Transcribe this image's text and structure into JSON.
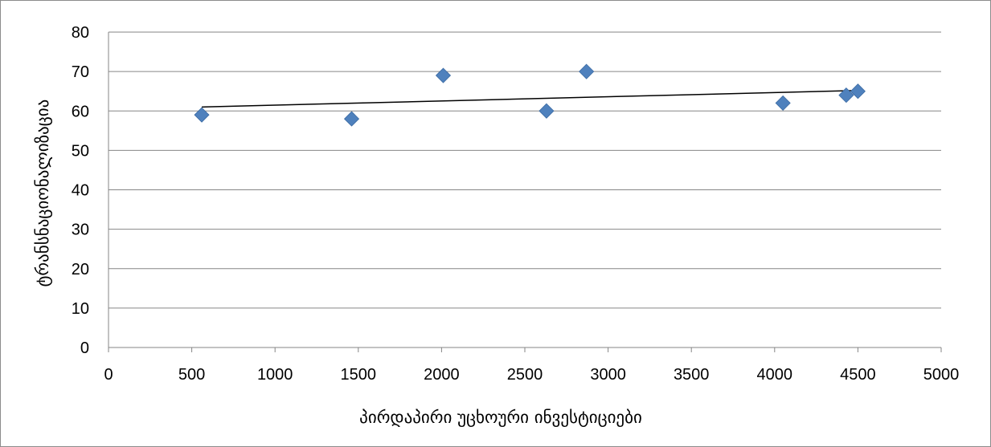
{
  "chart_data": {
    "type": "scatter",
    "xlabel": "პირდაპირი უცხოური ინვესტიციები",
    "ylabel": "ტრანსნაციონალიზაცია",
    "xlim": [
      0,
      5000
    ],
    "ylim": [
      0,
      80
    ],
    "x_ticks": [
      "0",
      "500",
      "1000",
      "1500",
      "2000",
      "2500",
      "3000",
      "3500",
      "4000",
      "4500",
      "5000"
    ],
    "y_ticks": [
      "0",
      "10",
      "20",
      "30",
      "40",
      "50",
      "60",
      "70",
      "80"
    ],
    "grid": "horizontal",
    "marker": "diamond",
    "colors": {
      "marker": "#4f81bd",
      "trendline": "#000000",
      "grid": "#868686"
    },
    "series": [
      {
        "points": [
          {
            "x": 560,
            "y": 59
          },
          {
            "x": 1460,
            "y": 58
          },
          {
            "x": 2010,
            "y": 69
          },
          {
            "x": 2630,
            "y": 60
          },
          {
            "x": 2870,
            "y": 70
          },
          {
            "x": 4050,
            "y": 62
          },
          {
            "x": 4430,
            "y": 64
          },
          {
            "x": 4500,
            "y": 65
          }
        ]
      }
    ],
    "trendline": {
      "type": "linear",
      "from": {
        "x": 560,
        "y": 61.0
      },
      "to": {
        "x": 4500,
        "y": 65.2
      }
    }
  }
}
